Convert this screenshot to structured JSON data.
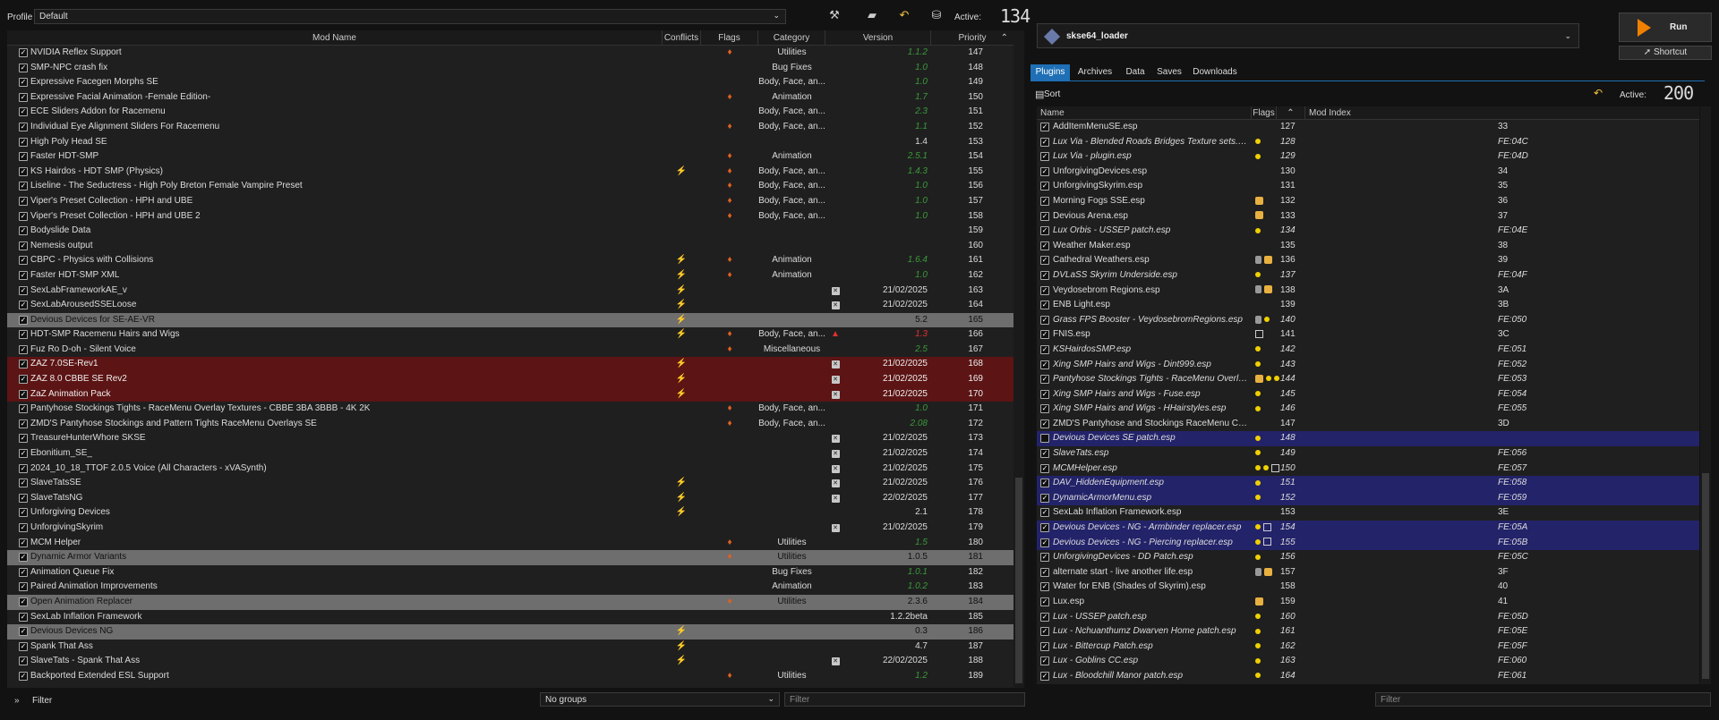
{
  "profile": {
    "label": "Profile",
    "value": "Default"
  },
  "toolbar_left": {
    "icons": [
      "tools-icon",
      "folder-icon",
      "undo-icon",
      "backup-icon"
    ],
    "active_label": "Active:",
    "active_count": "134"
  },
  "mod_columns": {
    "name": "Mod Name",
    "conflicts": "Conflicts",
    "flags": "Flags",
    "category": "Category",
    "version": "Version",
    "priority": "Priority"
  },
  "mods": [
    {
      "name": "NVIDIA Reflex Support",
      "conf": "",
      "flag": true,
      "note": false,
      "cat": "Utilities",
      "ver": "1.1.2",
      "vc": "green",
      "pri": "147",
      "hl": ""
    },
    {
      "name": "SMP-NPC crash fix",
      "conf": "",
      "flag": false,
      "note": false,
      "cat": "Bug Fixes",
      "ver": "1.0",
      "vc": "green",
      "pri": "148",
      "hl": ""
    },
    {
      "name": "Expressive Facegen Morphs SE",
      "conf": "",
      "flag": false,
      "note": false,
      "cat": "Body, Face, an...",
      "ver": "1.0",
      "vc": "green",
      "pri": "149",
      "hl": ""
    },
    {
      "name": "Expressive Facial Animation -Female Edition-",
      "conf": "",
      "flag": true,
      "note": false,
      "cat": "Animation",
      "ver": "1.7",
      "vc": "green",
      "pri": "150",
      "hl": ""
    },
    {
      "name": "ECE Sliders Addon for Racemenu",
      "conf": "",
      "flag": false,
      "note": false,
      "cat": "Body, Face, an...",
      "ver": "2.3",
      "vc": "green",
      "pri": "151",
      "hl": ""
    },
    {
      "name": "Individual Eye Alignment Sliders For Racemenu",
      "conf": "",
      "flag": true,
      "note": false,
      "cat": "Body, Face, an...",
      "ver": "1.1",
      "vc": "green",
      "pri": "152",
      "hl": ""
    },
    {
      "name": "High Poly Head SE",
      "conf": "",
      "flag": false,
      "note": false,
      "cat": "",
      "ver": "1.4",
      "vc": "",
      "pri": "153",
      "hl": ""
    },
    {
      "name": "Faster HDT-SMP",
      "conf": "",
      "flag": true,
      "note": false,
      "cat": "Animation",
      "ver": "2.5.1",
      "vc": "green",
      "pri": "154",
      "hl": ""
    },
    {
      "name": "KS Hairdos - HDT SMP (Physics)",
      "conf": "⚡",
      "flag": true,
      "note": false,
      "cat": "Body, Face, an...",
      "ver": "1.4.3",
      "vc": "green",
      "pri": "155",
      "hl": ""
    },
    {
      "name": "Liseline - The Seductress - High Poly Breton Female Vampire Preset",
      "conf": "",
      "flag": true,
      "note": false,
      "cat": "Body, Face, an...",
      "ver": "1.0",
      "vc": "green",
      "pri": "156",
      "hl": ""
    },
    {
      "name": "Viper's Preset Collection - HPH and UBE",
      "conf": "",
      "flag": true,
      "note": false,
      "cat": "Body, Face, an...",
      "ver": "1.0",
      "vc": "green",
      "pri": "157",
      "hl": ""
    },
    {
      "name": "Viper's Preset Collection - HPH and UBE 2",
      "conf": "",
      "flag": true,
      "note": false,
      "cat": "Body, Face, an...",
      "ver": "1.0",
      "vc": "green",
      "pri": "158",
      "hl": ""
    },
    {
      "name": "Bodyslide Data",
      "conf": "",
      "flag": false,
      "note": false,
      "cat": "",
      "ver": "",
      "vc": "",
      "pri": "159",
      "hl": ""
    },
    {
      "name": "Nemesis output",
      "conf": "",
      "flag": false,
      "note": false,
      "cat": "",
      "ver": "",
      "vc": "",
      "pri": "160",
      "hl": ""
    },
    {
      "name": "CBPC - Physics with Collisions",
      "conf": "⚡",
      "flag": true,
      "note": false,
      "cat": "Animation",
      "ver": "1.6.4",
      "vc": "green",
      "pri": "161",
      "hl": ""
    },
    {
      "name": "Faster HDT-SMP XML",
      "conf": "⚡",
      "flag": true,
      "note": false,
      "cat": "Animation",
      "ver": "1.0",
      "vc": "green",
      "pri": "162",
      "hl": ""
    },
    {
      "name": "SexLabFrameworkAE_v",
      "conf": "⚡",
      "flag": false,
      "note": true,
      "cat": "",
      "ver": "21/02/2025",
      "vc": "",
      "pri": "163",
      "hl": ""
    },
    {
      "name": "SexLabArousedSSELoose",
      "conf": "⚡",
      "flag": false,
      "note": true,
      "cat": "",
      "ver": "21/02/2025",
      "vc": "",
      "pri": "164",
      "hl": ""
    },
    {
      "name": "Devious Devices for SE-AE-VR",
      "conf": "⚡",
      "flag": false,
      "note": false,
      "cat": "",
      "ver": "5.2",
      "vc": "",
      "pri": "165",
      "hl": "gray"
    },
    {
      "name": "HDT-SMP Racemenu Hairs and Wigs",
      "conf": "⚡",
      "flag": true,
      "note": false,
      "warn": true,
      "cat": "Body, Face, an...",
      "ver": "1.3",
      "vc": "red",
      "pri": "166",
      "hl": ""
    },
    {
      "name": "Fuz Ro D-oh - Silent Voice",
      "conf": "",
      "flag": true,
      "note": false,
      "cat": "Miscellaneous",
      "ver": "2.5",
      "vc": "green",
      "pri": "167",
      "hl": ""
    },
    {
      "name": "ZAZ 7.0SE-Rev1",
      "conf": "⚡",
      "flag": false,
      "note": true,
      "cat": "",
      "ver": "21/02/2025",
      "vc": "",
      "pri": "168",
      "hl": "red"
    },
    {
      "name": "ZAZ 8.0 CBBE SE Rev2",
      "conf": "⚡",
      "flag": false,
      "note": true,
      "cat": "",
      "ver": "21/02/2025",
      "vc": "",
      "pri": "169",
      "hl": "red"
    },
    {
      "name": "ZaZ Animation Pack",
      "conf": "⚡",
      "flag": false,
      "note": true,
      "cat": "",
      "ver": "21/02/2025",
      "vc": "",
      "pri": "170",
      "hl": "red"
    },
    {
      "name": "Pantyhose Stockings Tights - RaceMenu Overlay Textures - CBBE 3BA 3BBB - 4K 2K",
      "conf": "",
      "flag": true,
      "note": false,
      "cat": "Body, Face, an...",
      "ver": "1.0",
      "vc": "green",
      "pri": "171",
      "hl": ""
    },
    {
      "name": "ZMD'S Pantyhose Stockings and Pattern Tights RaceMenu Overlays SE",
      "conf": "",
      "flag": true,
      "note": false,
      "cat": "Body, Face, an...",
      "ver": "2.08",
      "vc": "green",
      "pri": "172",
      "hl": ""
    },
    {
      "name": "TreasureHunterWhore SKSE",
      "conf": "",
      "flag": false,
      "note": true,
      "cat": "",
      "ver": "21/02/2025",
      "vc": "",
      "pri": "173",
      "hl": ""
    },
    {
      "name": "Ebonitium_SE_",
      "conf": "",
      "flag": false,
      "note": true,
      "cat": "",
      "ver": "21/02/2025",
      "vc": "",
      "pri": "174",
      "hl": ""
    },
    {
      "name": "2024_10_18_TTOF 2.0.5 Voice (All Characters - xVASynth)",
      "conf": "",
      "flag": false,
      "note": true,
      "cat": "",
      "ver": "21/02/2025",
      "vc": "",
      "pri": "175",
      "hl": ""
    },
    {
      "name": "SlaveTatsSE",
      "conf": "⚡",
      "flag": false,
      "note": true,
      "cat": "",
      "ver": "21/02/2025",
      "vc": "",
      "pri": "176",
      "hl": ""
    },
    {
      "name": "SlaveTatsNG",
      "conf": "⚡",
      "flag": false,
      "note": true,
      "cat": "",
      "ver": "22/02/2025",
      "vc": "",
      "pri": "177",
      "hl": ""
    },
    {
      "name": "Unforgiving Devices",
      "conf": "⚡",
      "flag": false,
      "note": false,
      "cat": "",
      "ver": "2.1",
      "vc": "",
      "pri": "178",
      "hl": ""
    },
    {
      "name": "UnforgivingSkyrim",
      "conf": "",
      "flag": false,
      "note": true,
      "cat": "",
      "ver": "21/02/2025",
      "vc": "",
      "pri": "179",
      "hl": ""
    },
    {
      "name": "MCM Helper",
      "conf": "",
      "flag": true,
      "note": false,
      "cat": "Utilities",
      "ver": "1.5",
      "vc": "green",
      "pri": "180",
      "hl": ""
    },
    {
      "name": "Dynamic Armor Variants",
      "conf": "",
      "flag": true,
      "note": false,
      "cat": "Utilities",
      "ver": "1.0.5",
      "vc": "",
      "pri": "181",
      "hl": "gray"
    },
    {
      "name": "Animation Queue Fix",
      "conf": "",
      "flag": false,
      "note": false,
      "cat": "Bug Fixes",
      "ver": "1.0.1",
      "vc": "green",
      "pri": "182",
      "hl": ""
    },
    {
      "name": "Paired Animation Improvements",
      "conf": "",
      "flag": false,
      "note": false,
      "cat": "Animation",
      "ver": "1.0.2",
      "vc": "green",
      "pri": "183",
      "hl": ""
    },
    {
      "name": "Open Animation Replacer",
      "conf": "",
      "flag": true,
      "note": false,
      "cat": "Utilities",
      "ver": "2.3.6",
      "vc": "",
      "pri": "184",
      "hl": "gray"
    },
    {
      "name": "SexLab Inflation Framework",
      "conf": "",
      "flag": false,
      "note": false,
      "cat": "",
      "ver": "1.2.2beta",
      "vc": "",
      "pri": "185",
      "hl": ""
    },
    {
      "name": "Devious Devices NG",
      "conf": "⚡",
      "flag": false,
      "note": false,
      "cat": "",
      "ver": "0.3",
      "vc": "",
      "pri": "186",
      "hl": "gray"
    },
    {
      "name": "Spank That Ass",
      "conf": "⚡",
      "flag": false,
      "note": false,
      "cat": "",
      "ver": "4.7",
      "vc": "",
      "pri": "187",
      "hl": ""
    },
    {
      "name": "SlaveTats - Spank That Ass",
      "conf": "⚡",
      "flag": false,
      "note": true,
      "cat": "",
      "ver": "22/02/2025",
      "vc": "",
      "pri": "188",
      "hl": ""
    },
    {
      "name": "Backported Extended ESL Support",
      "conf": "",
      "flag": true,
      "note": false,
      "cat": "Utilities",
      "ver": "1.2",
      "vc": "green",
      "pri": "189",
      "hl": ""
    }
  ],
  "bottom_left": {
    "filter_label": "Filter",
    "groups_value": "No groups",
    "filter_placeholder": "Filter"
  },
  "executable": {
    "name": "skse64_loader"
  },
  "run": {
    "label": "Run",
    "shortcut": "Shortcut"
  },
  "tabs": [
    "Plugins",
    "Archives",
    "Data",
    "Saves",
    "Downloads"
  ],
  "plugins_toolbar": {
    "sort": "Sort",
    "active_label": "Active:",
    "active_count": "200"
  },
  "plugin_columns": {
    "name": "Name",
    "flags": "Flags",
    "mod_index": "Mod Index"
  },
  "plugins": [
    {
      "name": "AddItemMenuSE.esp",
      "it": false,
      "fl": "",
      "n": "127",
      "idx": "33",
      "sel": false,
      "chk": true
    },
    {
      "name": "Lux Via - Blended Roads Bridges Texture sets.esp",
      "it": true,
      "fl": "d",
      "n": "128",
      "idx": "FE:04C",
      "sel": false,
      "chk": true
    },
    {
      "name": "Lux Via - plugin.esp",
      "it": true,
      "fl": "d",
      "n": "129",
      "idx": "FE:04D",
      "sel": false,
      "chk": true
    },
    {
      "name": "UnforgivingDevices.esp",
      "it": false,
      "fl": "",
      "n": "130",
      "idx": "34",
      "sel": false,
      "chk": true
    },
    {
      "name": "UnforgivingSkyrim.esp",
      "it": false,
      "fl": "",
      "n": "131",
      "idx": "35",
      "sel": false,
      "chk": true
    },
    {
      "name": "Morning Fogs SSE.esp",
      "it": false,
      "fl": "b",
      "n": "132",
      "idx": "36",
      "sel": false,
      "chk": true
    },
    {
      "name": "Devious Arena.esp",
      "it": false,
      "fl": "b",
      "n": "133",
      "idx": "37",
      "sel": false,
      "chk": true
    },
    {
      "name": "Lux Orbis - USSEP patch.esp",
      "it": true,
      "fl": "d",
      "n": "134",
      "idx": "FE:04E",
      "sel": false,
      "chk": true
    },
    {
      "name": "Weather Maker.esp",
      "it": false,
      "fl": "",
      "n": "135",
      "idx": "38",
      "sel": false,
      "chk": true
    },
    {
      "name": "Cathedral Weathers.esp",
      "it": false,
      "fl": "cb",
      "n": "136",
      "idx": "39",
      "sel": false,
      "chk": true
    },
    {
      "name": "DVLaSS Skyrim Underside.esp",
      "it": true,
      "fl": "d",
      "n": "137",
      "idx": "FE:04F",
      "sel": false,
      "chk": true
    },
    {
      "name": "Veydosebrom Regions.esp",
      "it": false,
      "fl": "cb",
      "n": "138",
      "idx": "3A",
      "sel": false,
      "chk": true
    },
    {
      "name": "ENB Light.esp",
      "it": false,
      "fl": "",
      "n": "139",
      "idx": "3B",
      "sel": false,
      "chk": true
    },
    {
      "name": "Grass FPS Booster - VeydosebromRegions.esp",
      "it": true,
      "fl": "cd",
      "n": "140",
      "idx": "FE:050",
      "sel": false,
      "chk": true
    },
    {
      "name": "FNIS.esp",
      "it": false,
      "fl": "s",
      "n": "141",
      "idx": "3C",
      "sel": false,
      "chk": true
    },
    {
      "name": "KSHairdosSMP.esp",
      "it": true,
      "fl": "d",
      "n": "142",
      "idx": "FE:051",
      "sel": false,
      "chk": true
    },
    {
      "name": "Xing SMP Hairs and Wigs - Dint999.esp",
      "it": true,
      "fl": "d",
      "n": "143",
      "idx": "FE:052",
      "sel": false,
      "chk": true
    },
    {
      "name": "Pantyhose Stockings Tights - RaceMenu Overlay Text...",
      "it": true,
      "fl": "bdd",
      "n": "144",
      "idx": "FE:053",
      "sel": false,
      "chk": true
    },
    {
      "name": "Xing SMP Hairs and Wigs - Fuse.esp",
      "it": true,
      "fl": "d",
      "n": "145",
      "idx": "FE:054",
      "sel": false,
      "chk": true
    },
    {
      "name": "Xing SMP Hairs and Wigs - HHairstyles.esp",
      "it": true,
      "fl": "d",
      "n": "146",
      "idx": "FE:055",
      "sel": false,
      "chk": true
    },
    {
      "name": "ZMD'S Pantyhose and Stockings RaceMenu CBBE.esp",
      "it": false,
      "fl": "",
      "n": "147",
      "idx": "3D",
      "sel": false,
      "chk": true
    },
    {
      "name": "Devious Devices SE patch.esp",
      "it": true,
      "fl": "d",
      "n": "148",
      "idx": "",
      "sel": true,
      "chk": false
    },
    {
      "name": "SlaveTats.esp",
      "it": true,
      "fl": "d",
      "n": "149",
      "idx": "FE:056",
      "sel": false,
      "chk": true
    },
    {
      "name": "MCMHelper.esp",
      "it": true,
      "fl": "dds",
      "n": "150",
      "idx": "FE:057",
      "sel": false,
      "chk": true
    },
    {
      "name": "DAV_HiddenEquipment.esp",
      "it": true,
      "fl": "d",
      "n": "151",
      "idx": "FE:058",
      "sel": true,
      "chk": true
    },
    {
      "name": "DynamicArmorMenu.esp",
      "it": true,
      "fl": "d",
      "n": "152",
      "idx": "FE:059",
      "sel": true,
      "chk": true
    },
    {
      "name": "SexLab Inflation Framework.esp",
      "it": false,
      "fl": "",
      "n": "153",
      "idx": "3E",
      "sel": false,
      "chk": true
    },
    {
      "name": "Devious Devices - NG - Armbinder replacer.esp",
      "it": true,
      "fl": "ds",
      "n": "154",
      "idx": "FE:05A",
      "sel": true,
      "chk": true
    },
    {
      "name": "Devious Devices - NG - Piercing replacer.esp",
      "it": true,
      "fl": "ds",
      "n": "155",
      "idx": "FE:05B",
      "sel": true,
      "chk": true
    },
    {
      "name": "UnforgivingDevices - DD Patch.esp",
      "it": true,
      "fl": "d",
      "n": "156",
      "idx": "FE:05C",
      "sel": false,
      "chk": true
    },
    {
      "name": "alternate start - live another life.esp",
      "it": false,
      "fl": "cb",
      "n": "157",
      "idx": "3F",
      "sel": false,
      "chk": true
    },
    {
      "name": "Water for ENB (Shades of Skyrim).esp",
      "it": false,
      "fl": "",
      "n": "158",
      "idx": "40",
      "sel": false,
      "chk": true
    },
    {
      "name": "Lux.esp",
      "it": false,
      "fl": "b",
      "n": "159",
      "idx": "41",
      "sel": false,
      "chk": true
    },
    {
      "name": "Lux - USSEP patch.esp",
      "it": true,
      "fl": "d",
      "n": "160",
      "idx": "FE:05D",
      "sel": false,
      "chk": true
    },
    {
      "name": "Lux - Nchuanthumz Dwarven Home patch.esp",
      "it": true,
      "fl": "d",
      "n": "161",
      "idx": "FE:05E",
      "sel": false,
      "chk": true
    },
    {
      "name": "Lux - Bittercup Patch.esp",
      "it": true,
      "fl": "d",
      "n": "162",
      "idx": "FE:05F",
      "sel": false,
      "chk": true
    },
    {
      "name": "Lux - Goblins CC.esp",
      "it": true,
      "fl": "d",
      "n": "163",
      "idx": "FE:060",
      "sel": false,
      "chk": true
    },
    {
      "name": "Lux - Bloodchill Manor patch.esp",
      "it": true,
      "fl": "d",
      "n": "164",
      "idx": "FE:061",
      "sel": false,
      "chk": true
    }
  ],
  "bottom_right": {
    "filter_placeholder": "Filter"
  },
  "colors": {
    "accent": "#1e6fb5",
    "row_red": "#5c1414",
    "row_gray": "#6e6e6e",
    "row_selected": "#23236a",
    "run_orange": "#f08000"
  }
}
